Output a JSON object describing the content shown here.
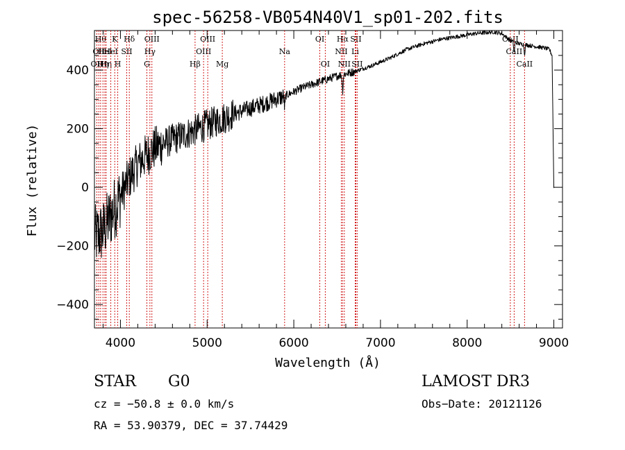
{
  "chart_data": {
    "type": "line",
    "title": "spec-56258-VB054N40V1_sp01-202.fits",
    "xlabel": "Wavelength (Å)",
    "ylabel": "Flux (relative)",
    "xlim": [
      3700,
      9100
    ],
    "ylim": [
      -480,
      535
    ],
    "xticks": [
      4000,
      5000,
      6000,
      7000,
      8000,
      9000
    ],
    "xtick_labels": [
      "4000",
      "5000",
      "6000",
      "7000",
      "8000",
      "9000"
    ],
    "yticks": [
      -400,
      -200,
      0,
      200,
      400
    ],
    "ytick_labels": [
      "−400",
      "−200",
      "0",
      "200",
      "400"
    ],
    "color": "#000000",
    "line_color": "#cc0000",
    "spectrum_anchors": {
      "x": [
        3700,
        3800,
        3900,
        4000,
        4100,
        4200,
        4300,
        4400,
        4500,
        4700,
        4900,
        5100,
        5300,
        5500,
        5700,
        5900,
        6100,
        6300,
        6500,
        6700,
        6900,
        7100,
        7300,
        7500,
        7700,
        7900,
        8100,
        8300,
        8400,
        8500,
        8600,
        8700,
        8800,
        8900,
        8950,
        8980,
        9000
      ],
      "y": [
        -170,
        -150,
        -90,
        -30,
        30,
        80,
        110,
        135,
        150,
        175,
        200,
        225,
        250,
        270,
        290,
        312,
        340,
        360,
        380,
        395,
        415,
        440,
        470,
        490,
        505,
        515,
        525,
        530,
        525,
        500,
        490,
        485,
        480,
        475,
        470,
        450,
        0
      ]
    },
    "absorption_dips": [
      {
        "x": 5895,
        "depth": 45
      },
      {
        "x": 6563,
        "depth": 60
      },
      {
        "x": 8542,
        "depth": 40
      },
      {
        "x": 8662,
        "depth": 35
      }
    ],
    "lines": [
      {
        "x": 3727,
        "label": "OII",
        "row": 2
      },
      {
        "x": 3750,
        "label": "OII",
        "row": 1
      },
      {
        "x": 3771,
        "label": "Hθ",
        "row": 0
      },
      {
        "x": 3798,
        "label": "Hη",
        "row": 2
      },
      {
        "x": 3820,
        "label": "HeI",
        "row": 1
      },
      {
        "x": 3835,
        "label": "Hη",
        "row": 2
      },
      {
        "x": 3889,
        "label": "HeI",
        "row": 1
      },
      {
        "x": 3934,
        "label": "K",
        "row": 0
      },
      {
        "x": 3969,
        "label": "H",
        "row": 2
      },
      {
        "x": 4072,
        "label": "SII",
        "row": 1
      },
      {
        "x": 4102,
        "label": "Hδ",
        "row": 0
      },
      {
        "x": 4305,
        "label": "G",
        "row": 2
      },
      {
        "x": 4340,
        "label": "Hγ",
        "row": 1
      },
      {
        "x": 4363,
        "label": "OIII",
        "row": 0
      },
      {
        "x": 4861,
        "label": "Hβ",
        "row": 2
      },
      {
        "x": 4959,
        "label": "OIII",
        "row": 1
      },
      {
        "x": 5007,
        "label": "OIII",
        "row": 0
      },
      {
        "x": 5175,
        "label": "Mg",
        "row": 2
      },
      {
        "x": 5894,
        "label": "Na",
        "row": 1
      },
      {
        "x": 6300,
        "label": "OI",
        "row": 0
      },
      {
        "x": 6363,
        "label": "OI",
        "row": 2
      },
      {
        "x": 6548,
        "label": "NII",
        "row": 1
      },
      {
        "x": 6563,
        "label": "Hα",
        "row": 0
      },
      {
        "x": 6583,
        "label": "NII",
        "row": 2
      },
      {
        "x": 6708,
        "label": "Li",
        "row": 1
      },
      {
        "x": 6716,
        "label": "SII",
        "row": 0
      },
      {
        "x": 6731,
        "label": "SII",
        "row": 2
      },
      {
        "x": 8498,
        "label": "CaII",
        "row": 0
      },
      {
        "x": 8542,
        "label": "CaII",
        "row": 1
      },
      {
        "x": 8662,
        "label": "CaII",
        "row": 2
      }
    ]
  },
  "info": {
    "class": "STAR",
    "subclass": "G0",
    "survey": "LAMOST DR3",
    "cz": "cz = −50.8 ± 0.0 km/s",
    "obs_date": "Obs−Date: 20121126",
    "radec": "RA =  53.90379, DEC =  37.74429"
  }
}
